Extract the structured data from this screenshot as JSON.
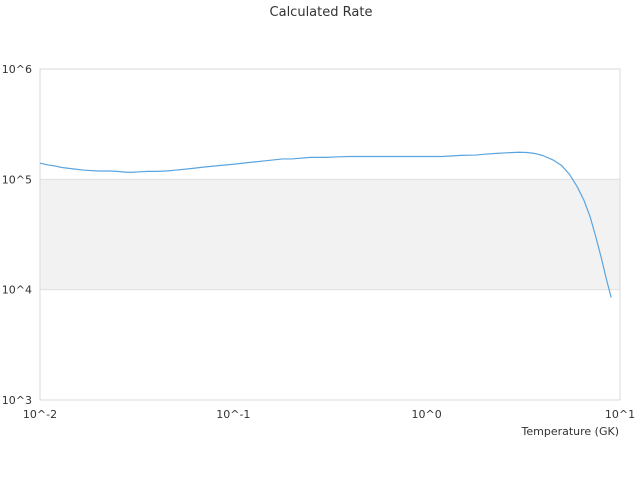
{
  "chart_data": {
    "type": "line",
    "title": "Calculated Rate",
    "xlabel": "Temperature (GK)",
    "ylabel": "",
    "x_scale": "log",
    "y_scale": "log",
    "xlim": [
      0.01,
      10
    ],
    "ylim": [
      1000,
      1000000
    ],
    "x_ticks": [
      0.01,
      0.1,
      1,
      10
    ],
    "x_tick_labels": [
      "10^-2",
      "10^-1",
      "10^0",
      "10^1"
    ],
    "y_ticks": [
      1000,
      10000,
      100000,
      1000000
    ],
    "y_tick_labels": [
      "10^3",
      "10^4",
      "10^5",
      "10^6"
    ],
    "band": {
      "from": 10000,
      "to": 100000,
      "color": "#f2f2f2"
    },
    "grid": true,
    "line_color": "#5aa5e0",
    "series": [
      {
        "x": [
          0.01,
          0.011,
          0.012,
          0.013,
          0.015,
          0.017,
          0.02,
          0.023,
          0.025,
          0.028,
          0.03,
          0.033,
          0.036,
          0.04,
          0.045,
          0.05,
          0.06,
          0.07,
          0.08,
          0.1,
          0.12,
          0.15,
          0.18,
          0.2,
          0.25,
          0.3,
          0.35,
          0.4,
          0.5,
          0.6,
          0.7,
          0.8,
          1.0,
          1.2,
          1.5,
          1.8,
          2.0,
          2.3,
          2.6,
          3.0,
          3.3,
          3.6,
          4.0,
          4.5,
          5.0,
          5.5,
          6.0,
          6.5,
          7.0,
          7.5,
          8.0,
          8.5,
          9.0
        ],
        "y": [
          140000,
          135000,
          132000,
          128000,
          124000,
          121000,
          119000,
          119000,
          118000,
          116000,
          116000,
          117000,
          118000,
          118000,
          119000,
          121000,
          125000,
          129000,
          132000,
          137000,
          142000,
          148000,
          153000,
          153000,
          158000,
          158000,
          160000,
          161000,
          161000,
          161000,
          161000,
          161000,
          161000,
          161000,
          165000,
          166000,
          169000,
          172000,
          174000,
          176000,
          175000,
          172000,
          164000,
          150000,
          133000,
          110000,
          86000,
          65000,
          46000,
          30000,
          19500,
          12500,
          8500
        ]
      }
    ]
  }
}
